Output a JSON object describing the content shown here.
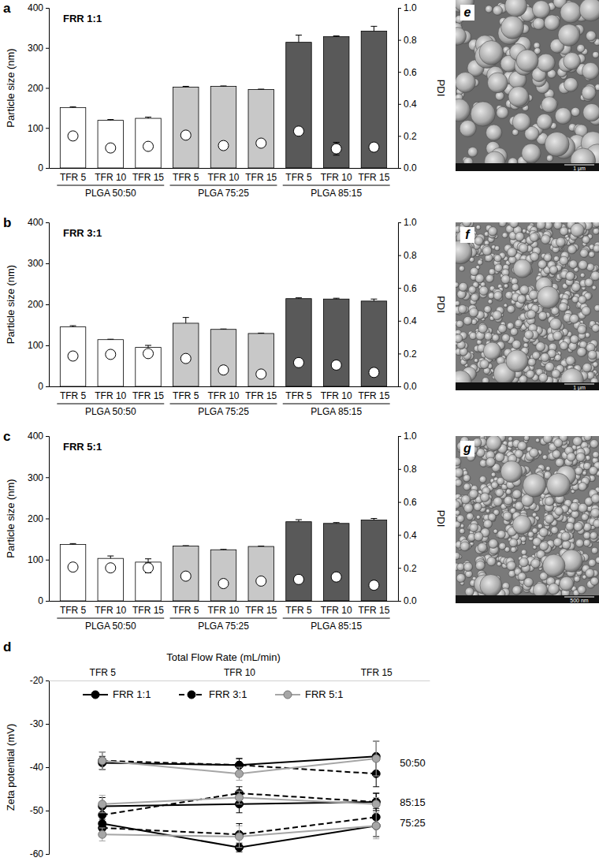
{
  "chart_data": [
    {
      "type": "bar",
      "panel": "a",
      "title": "FRR 1:1",
      "categories": [
        "TFR 5",
        "TFR 10",
        "TFR 15",
        "TFR 5",
        "TFR 10",
        "TFR 15",
        "TFR 5",
        "TFR 10",
        "TFR 15"
      ],
      "group_labels": [
        "PLGA 50:50",
        "PLGA 75:25",
        "PLGA 85:15"
      ],
      "ylabel": "Particle size (nm)",
      "y2label": "PDI",
      "ylim": [
        0,
        400
      ],
      "yticks": [
        0,
        100,
        200,
        300,
        400
      ],
      "y2lim": [
        0,
        1
      ],
      "y2ticks": [
        {
          "value": 0,
          "label": "0.0"
        },
        0.2,
        0.4,
        0.6,
        0.8,
        {
          "value": 1,
          "label": "1.0"
        }
      ],
      "series": [
        {
          "type": "bar",
          "colors": [
            "#ffffff",
            "#ffffff",
            "#ffffff",
            "#c8c8c8",
            "#c8c8c8",
            "#c8c8c8",
            "#595959",
            "#595959",
            "#595959"
          ],
          "values": [
            151,
            119,
            124,
            202,
            204,
            196,
            314,
            328,
            342
          ],
          "errors": [
            2,
            2,
            3,
            2,
            1,
            1,
            18,
            2,
            12
          ]
        },
        {
          "type": "scatter",
          "axis": "y2",
          "marker": "circle",
          "color": "#ffffff",
          "values": [
            0.2,
            0.125,
            0.135,
            0.205,
            0.14,
            0.155,
            0.23,
            0.12,
            0.13
          ],
          "errors": [
            0.005,
            0.025,
            0.01,
            0.005,
            0.005,
            0.005,
            0.01,
            0.04,
            0.01
          ]
        }
      ]
    },
    {
      "type": "bar",
      "panel": "b",
      "title": "FRR 3:1",
      "categories": [
        "TFR 5",
        "TFR 10",
        "TFR 15",
        "TFR 5",
        "TFR 10",
        "TFR 15",
        "TFR 5",
        "TFR 10",
        "TFR 15"
      ],
      "group_labels": [
        "PLGA 50:50",
        "PLGA 75:25",
        "PLGA 85:15"
      ],
      "ylabel": "Particle size (nm)",
      "y2label": "PDI",
      "ylim": [
        0,
        400
      ],
      "yticks": [
        0,
        100,
        200,
        300,
        400
      ],
      "y2lim": [
        0,
        1
      ],
      "y2ticks": [
        {
          "value": 0,
          "label": "0.0"
        },
        0.2,
        0.4,
        0.6,
        0.8,
        {
          "value": 1,
          "label": "1.0"
        }
      ],
      "series": [
        {
          "type": "bar",
          "colors": [
            "#ffffff",
            "#ffffff",
            "#ffffff",
            "#c8c8c8",
            "#c8c8c8",
            "#c8c8c8",
            "#595959",
            "#595959",
            "#595959"
          ],
          "values": [
            145,
            114,
            95,
            154,
            139,
            129,
            214,
            213,
            208
          ],
          "errors": [
            3,
            1,
            5,
            14,
            1,
            1,
            2,
            2,
            5
          ]
        },
        {
          "type": "scatter",
          "axis": "y2",
          "marker": "circle",
          "color": "#ffffff",
          "values": [
            0.185,
            0.195,
            0.2,
            0.17,
            0.1,
            0.075,
            0.145,
            0.13,
            0.085
          ],
          "errors": [
            0.01,
            0.01,
            0.02,
            0.005,
            0.005,
            0.005,
            0.005,
            0.005,
            0.005
          ]
        }
      ]
    },
    {
      "type": "bar",
      "panel": "c",
      "title": "FRR 5:1",
      "categories": [
        "TFR 5",
        "TFR 10",
        "TFR 15",
        "TFR 5",
        "TFR 10",
        "TFR 15",
        "TFR 5",
        "TFR 10",
        "TFR 15"
      ],
      "group_labels": [
        "PLGA 50:50",
        "PLGA 75:25",
        "PLGA 85:15"
      ],
      "ylabel": "Particle size (nm)",
      "y2label": "PDI",
      "ylim": [
        0,
        400
      ],
      "yticks": [
        0,
        100,
        200,
        300,
        400
      ],
      "y2lim": [
        0,
        1
      ],
      "y2ticks": [
        {
          "value": 0,
          "label": "0.0"
        },
        0.2,
        0.4,
        0.6,
        0.8,
        {
          "value": 1,
          "label": "1.0"
        }
      ],
      "series": [
        {
          "type": "bar",
          "colors": [
            "#ffffff",
            "#ffffff",
            "#ffffff",
            "#c8c8c8",
            "#c8c8c8",
            "#c8c8c8",
            "#595959",
            "#595959",
            "#595959"
          ],
          "values": [
            137,
            103,
            94,
            133,
            124,
            132,
            192,
            188,
            196
          ],
          "errors": [
            2,
            6,
            8,
            1,
            1,
            1,
            5,
            2,
            4
          ]
        },
        {
          "type": "scatter",
          "axis": "y2",
          "marker": "circle",
          "color": "#ffffff",
          "values": [
            0.205,
            0.2,
            0.2,
            0.15,
            0.105,
            0.12,
            0.13,
            0.145,
            0.095
          ],
          "errors": [
            0.01,
            0.01,
            0.03,
            0.005,
            0.005,
            0.005,
            0.01,
            0.02,
            0.005
          ]
        }
      ]
    },
    {
      "type": "line",
      "panel": "d",
      "xlabel": "Total Flow Rate (mL/min)",
      "ylabel": "Zeta potential (mV)",
      "categories": [
        "TFR 5",
        "TFR 10",
        "TFR 15"
      ],
      "ylim": [
        -60,
        -20
      ],
      "yticks": [
        -60,
        -50,
        -40,
        -30,
        -20
      ],
      "legend": "top",
      "series": [
        {
          "name": "FRR 1:1",
          "group": "50:50",
          "color": "#000000",
          "line_style": "solid",
          "marker": "circle",
          "values": [
            -39,
            -39.5,
            -37.5
          ],
          "errors": [
            1.5,
            1.5,
            3.5
          ]
        },
        {
          "name": "FRR 3:1",
          "group": "50:50",
          "color": "#000000",
          "line_style": "dashed",
          "marker": "circle",
          "values": [
            -38.5,
            -39.5,
            -41.5
          ],
          "errors": [
            2,
            1.5,
            3
          ]
        },
        {
          "name": "FRR 5:1",
          "group": "50:50",
          "color": "#a6a6a6",
          "line_style": "solid",
          "marker": "circle",
          "values": [
            -38.5,
            -41.5,
            -38
          ],
          "errors": [
            2,
            1.5,
            4
          ]
        },
        {
          "name": "FRR 1:1",
          "group": "85:15",
          "color": "#000000",
          "line_style": "solid",
          "marker": "circle",
          "values": [
            -49,
            -48.5,
            -48
          ],
          "errors": [
            2,
            2,
            2
          ]
        },
        {
          "name": "FRR 3:1",
          "group": "85:15",
          "color": "#000000",
          "line_style": "dashed",
          "marker": "circle",
          "values": [
            -51,
            -46,
            -48
          ],
          "errors": [
            2,
            1.5,
            2
          ]
        },
        {
          "name": "FRR 5:1",
          "group": "85:15",
          "color": "#a6a6a6",
          "line_style": "solid",
          "marker": "circle",
          "values": [
            -48.5,
            -47,
            -48.5
          ],
          "errors": [
            2,
            1.5,
            1.5
          ]
        },
        {
          "name": "FRR 1:1",
          "group": "75:25",
          "color": "#000000",
          "line_style": "solid",
          "marker": "circle",
          "values": [
            -53,
            -58.5,
            -53.5
          ],
          "errors": [
            1.5,
            1,
            2.5
          ]
        },
        {
          "name": "FRR 3:1",
          "group": "75:25",
          "color": "#000000",
          "line_style": "dashed",
          "marker": "circle",
          "values": [
            -54,
            -55.5,
            -51.5
          ],
          "errors": [
            2,
            2.5,
            2
          ]
        },
        {
          "name": "FRR 5:1",
          "group": "75:25",
          "color": "#a6a6a6",
          "line_style": "solid",
          "marker": "circle",
          "values": [
            -55.5,
            -56,
            -53.5
          ],
          "errors": [
            1.5,
            2.5,
            3
          ]
        }
      ]
    }
  ],
  "images": [
    {
      "panel": "e",
      "scale_bar": "1 μm"
    },
    {
      "panel": "f",
      "scale_bar": "1 μm"
    },
    {
      "panel": "g",
      "scale_bar": "500 nm"
    }
  ]
}
